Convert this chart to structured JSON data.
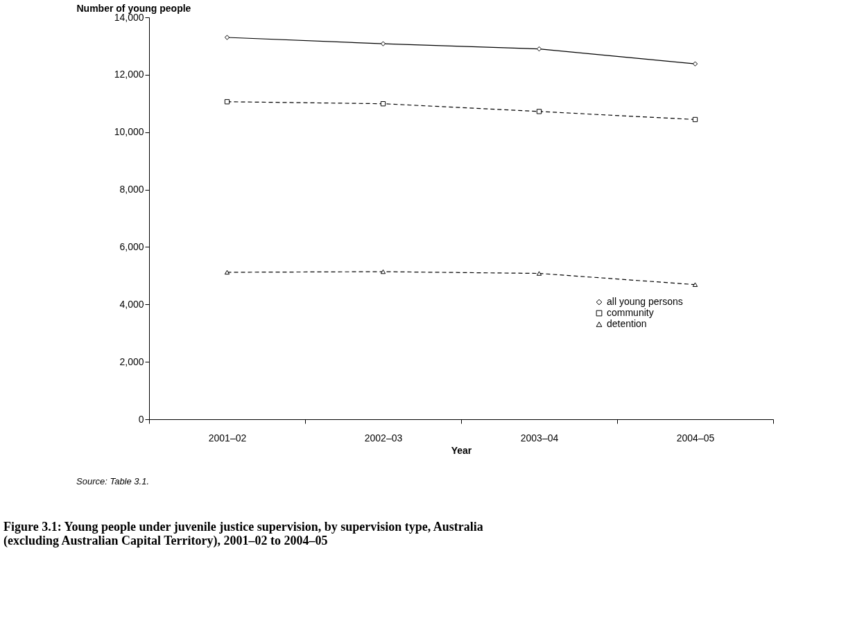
{
  "chart_data": {
    "type": "line",
    "title": "Figure 3.1: Young people under juvenile justice supervision, by supervision type, Australia (excluding Australian Capital Territory), 2001–02 to 2004–05",
    "xlabel": "Year",
    "ylabel": "Number of young people",
    "categories": [
      "2001–02",
      "2002–03",
      "2003–04",
      "2004–05"
    ],
    "series": [
      {
        "name": "all young persons",
        "color": "#000000",
        "marker": "diamond",
        "line_style": "solid",
        "values": [
          13300,
          13080,
          12900,
          12380
        ]
      },
      {
        "name": "community",
        "color": "#000000",
        "marker": "square",
        "line_style": "dashed",
        "values": [
          11060,
          10990,
          10720,
          10440
        ]
      },
      {
        "name": "detention",
        "color": "#000000",
        "marker": "triangle",
        "line_style": "dashed",
        "values": [
          5120,
          5140,
          5080,
          4690
        ]
      }
    ],
    "ylim": [
      0,
      14000
    ],
    "yticks": [
      0,
      {
        "value": 2000,
        "label": "2,000"
      },
      {
        "value": 4000,
        "label": "4,000"
      },
      {
        "value": 6000,
        "label": "6,000"
      },
      {
        "value": 8000,
        "label": "8,000"
      },
      {
        "value": 10000,
        "label": "10,000"
      },
      {
        "value": 12000,
        "label": "12,000"
      },
      {
        "value": 14000,
        "label": "14,000"
      }
    ],
    "grid": false,
    "legend": "bottom right",
    "annotations": [
      "Source: Table 3.1."
    ]
  }
}
